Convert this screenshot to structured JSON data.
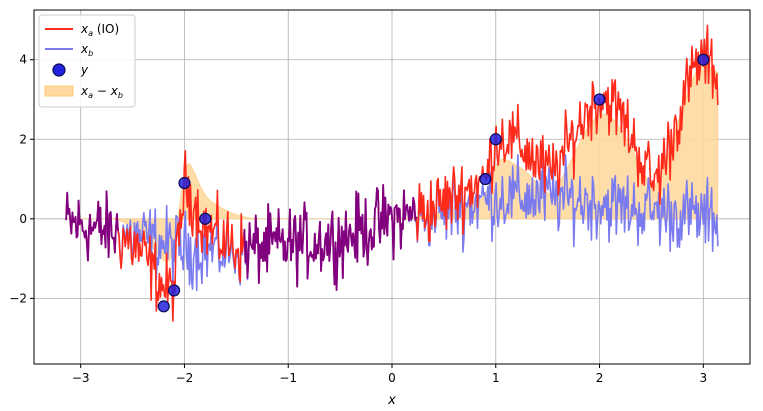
{
  "chart_data": {
    "type": "line",
    "title": "",
    "xlabel": "x",
    "ylabel": "",
    "xlim": [
      -3.45,
      3.45
    ],
    "ylim": [
      -3.65,
      5.25
    ],
    "xticks": [
      -3,
      -2,
      -1,
      0,
      1,
      2,
      3
    ],
    "yticks": [
      -2,
      0,
      2,
      4
    ],
    "xtick_labels": [
      "−3",
      "−2",
      "−1",
      "0",
      "1",
      "2",
      "3"
    ],
    "ytick_labels": [
      "−2",
      "0",
      "2",
      "4"
    ],
    "grid": true,
    "legend_position": "top-left",
    "legend": [
      {
        "key": "xa",
        "label_main": "x",
        "label_sub": "a",
        "label_suffix": " (IO)"
      },
      {
        "key": "xb",
        "label_main": "x",
        "label_sub": "b",
        "label_suffix": ""
      },
      {
        "key": "y",
        "label_main": "y",
        "label_sub": "",
        "label_suffix": ""
      },
      {
        "key": "diff",
        "label_main": "x",
        "label_sub": "a",
        "label_mid": " − x",
        "label_sub2": "b"
      }
    ],
    "colors": {
      "xa": "#ff2a1a",
      "xb": "#7b7bf0",
      "overlap": "#800080",
      "y_fill": "#2222dd",
      "y_edge": "#0a0a55",
      "diff_fill": "#ffd9a0",
      "diff_edge": "#ffc97a"
    },
    "x_range": [
      -3.14,
      3.14
    ],
    "num_points": 630,
    "noise_amplitude": 0.45,
    "observations": {
      "x": [
        -2.2,
        -2.1,
        -2.0,
        -1.8,
        0.9,
        1.0,
        2.0,
        3.0
      ],
      "y": [
        -2.2,
        -1.8,
        0.9,
        0.0,
        1.0,
        2.0,
        3.0,
        4.0
      ]
    },
    "observation_regions": [
      {
        "center": -2.0,
        "width": 0.4
      },
      {
        "center": 1.0,
        "width": 0.55
      },
      {
        "center": 2.0,
        "width": 0.5
      },
      {
        "center": 3.0,
        "width": 0.45
      }
    ]
  }
}
